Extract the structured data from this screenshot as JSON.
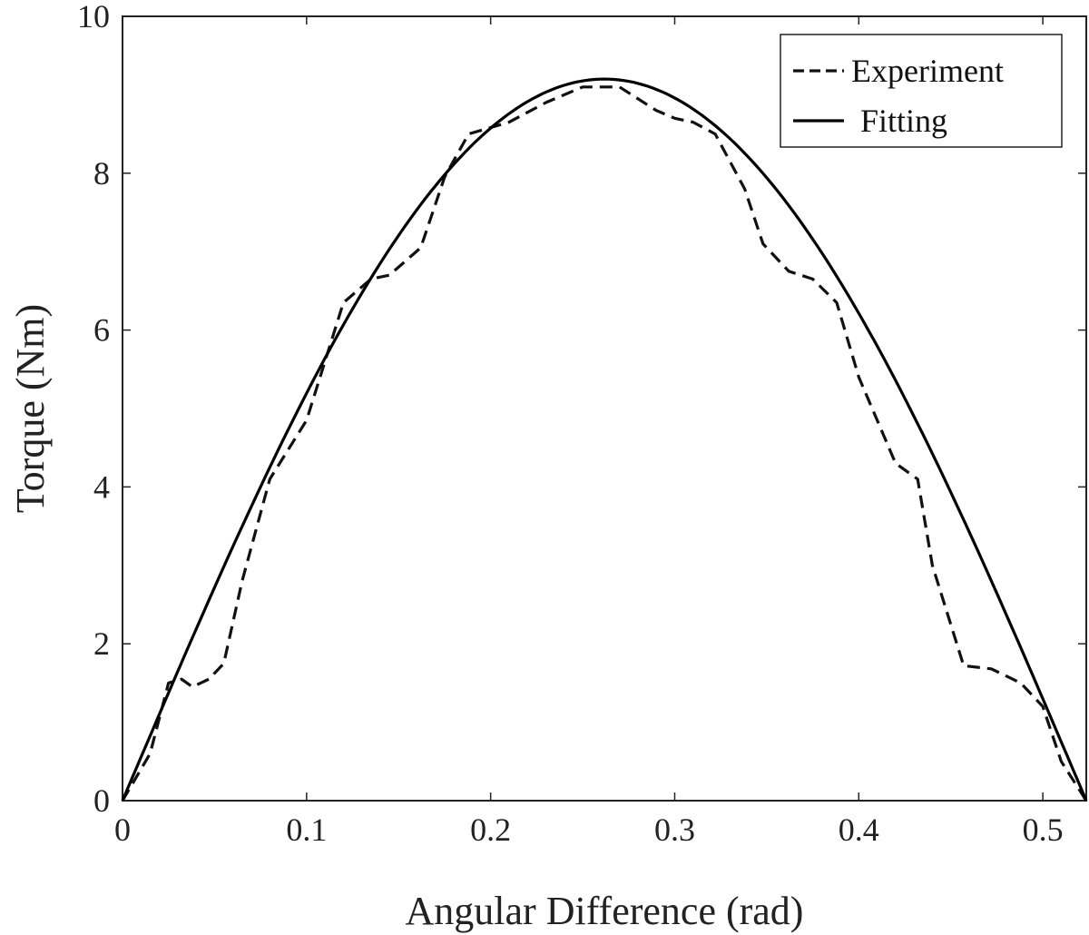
{
  "chart_data": {
    "type": "line",
    "title": "",
    "xlabel": "Angular Difference (rad)",
    "ylabel": "Torque (Nm)",
    "xlim": [
      0,
      0.5236
    ],
    "ylim": [
      0,
      10
    ],
    "xticks": [
      0,
      0.1,
      0.2,
      0.3,
      0.4,
      0.5
    ],
    "xtick_labels": [
      "0",
      "0.1",
      "0.2",
      "0.3",
      "0.4",
      "0.5"
    ],
    "yticks": [
      0,
      2,
      4,
      6,
      8,
      10
    ],
    "ytick_labels": [
      "0",
      "2",
      "4",
      "6",
      "8",
      "10"
    ],
    "grid": false,
    "legend_position": "top-right",
    "series": [
      {
        "name": "Experiment",
        "style": "dashed",
        "color": "#111111",
        "points": [
          [
            0,
            0
          ],
          [
            0.015,
            0.6
          ],
          [
            0.025,
            1.5
          ],
          [
            0.032,
            1.55
          ],
          [
            0.038,
            1.45
          ],
          [
            0.047,
            1.55
          ],
          [
            0.055,
            1.75
          ],
          [
            0.065,
            2.8
          ],
          [
            0.08,
            4.1
          ],
          [
            0.1,
            4.85
          ],
          [
            0.12,
            6.35
          ],
          [
            0.135,
            6.65
          ],
          [
            0.145,
            6.7
          ],
          [
            0.162,
            7.05
          ],
          [
            0.175,
            7.95
          ],
          [
            0.188,
            8.5
          ],
          [
            0.21,
            8.65
          ],
          [
            0.23,
            8.9
          ],
          [
            0.25,
            9.1
          ],
          [
            0.27,
            9.1
          ],
          [
            0.29,
            8.8
          ],
          [
            0.3,
            8.7
          ],
          [
            0.31,
            8.65
          ],
          [
            0.322,
            8.5
          ],
          [
            0.338,
            7.8
          ],
          [
            0.348,
            7.1
          ],
          [
            0.362,
            6.75
          ],
          [
            0.375,
            6.65
          ],
          [
            0.388,
            6.35
          ],
          [
            0.4,
            5.4
          ],
          [
            0.42,
            4.3
          ],
          [
            0.432,
            4.1
          ],
          [
            0.44,
            3.0
          ],
          [
            0.457,
            1.72
          ],
          [
            0.472,
            1.68
          ],
          [
            0.488,
            1.5
          ],
          [
            0.5,
            1.2
          ],
          [
            0.51,
            0.5
          ],
          [
            0.5236,
            0
          ]
        ]
      },
      {
        "name": "Fitting",
        "style": "solid",
        "color": "#000000",
        "function": "sine",
        "amplitude": 9.2,
        "period_span": 0.5236
      }
    ]
  }
}
